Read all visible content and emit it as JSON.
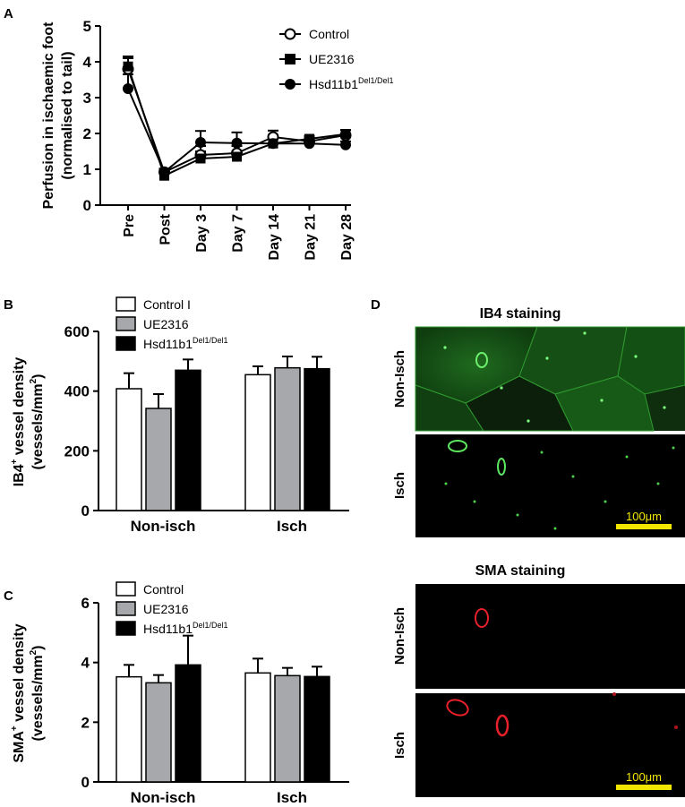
{
  "panels": {
    "A": "A",
    "B": "B",
    "C": "C",
    "D": "D"
  },
  "colors": {
    "control": "#ffffff",
    "ue2316": "#a6a8ab",
    "hsd": "#000000",
    "ib4_green": "#3ec43e",
    "sma_red": "#e8202a",
    "scale_bar": "#f2e600"
  },
  "chart_data": [
    {
      "id": "A",
      "type": "line",
      "ylabel_line1": "Perfusion in ischaemic foot",
      "ylabel_line2": "(normalised to tail)",
      "ylim": [
        0,
        5
      ],
      "yticks": [
        "0",
        "1",
        "2",
        "3",
        "4",
        "5"
      ],
      "categories": [
        "Pre",
        "Post",
        "Day 3",
        "Day 7",
        "Day 14",
        "Day 21",
        "Day 28"
      ],
      "legend": {
        "control": "Control",
        "ue2316": "UE2316",
        "hsd_base": "Hsd11b1",
        "hsd_sup": "Del1/Del1"
      },
      "series": [
        {
          "key": "control",
          "marker": "open-circle",
          "values": [
            3.8,
            0.92,
            1.4,
            1.45,
            1.9,
            1.78,
            1.95
          ],
          "err": [
            0.3,
            0.08,
            0.25,
            0.2,
            0.18,
            0.1,
            0.15
          ]
        },
        {
          "key": "ue2316",
          "marker": "square",
          "values": [
            3.87,
            0.82,
            1.3,
            1.35,
            1.72,
            1.85,
            1.98
          ],
          "err": [
            0.28,
            0.08,
            0.2,
            0.15,
            0.15,
            0.08,
            0.12
          ]
        },
        {
          "key": "hsd",
          "marker": "circle",
          "values": [
            3.25,
            0.92,
            1.75,
            1.73,
            1.72,
            1.72,
            1.68
          ],
          "err": [
            0.4,
            0.1,
            0.32,
            0.3,
            0.12,
            0.15,
            0.1
          ]
        }
      ]
    },
    {
      "id": "B",
      "type": "bar",
      "ylabel_base": "IB4",
      "ylabel_sup": "+",
      "ylabel_rest": " vessel density",
      "ylabel_line2_base": "(vessels/mm",
      "ylabel_line2_sup": "2",
      "ylabel_line2_end": ")",
      "ylim": [
        0,
        600
      ],
      "yticks": [
        "0",
        "200",
        "400",
        "600"
      ],
      "categories": [
        "Non-isch",
        "Isch"
      ],
      "legend": {
        "control": "Control I",
        "ue2316": "UE2316",
        "hsd_base": "Hsd11b1",
        "hsd_sup": "Del1/Del1"
      },
      "series": [
        {
          "key": "control",
          "values": [
            408,
            455
          ],
          "err": [
            52,
            28
          ]
        },
        {
          "key": "ue2316",
          "values": [
            342,
            478
          ],
          "err": [
            48,
            38
          ]
        },
        {
          "key": "hsd",
          "values": [
            470,
            475
          ],
          "err": [
            36,
            40
          ]
        }
      ]
    },
    {
      "id": "C",
      "type": "bar",
      "ylabel_base": "SMA",
      "ylabel_sup": "+",
      "ylabel_rest": " vessel density",
      "ylabel_line2_base": "(vessels/mm",
      "ylabel_line2_sup": "2",
      "ylabel_line2_end": ")",
      "ylim": [
        0,
        6
      ],
      "yticks": [
        "0",
        "2",
        "4",
        "6"
      ],
      "categories": [
        "Non-isch",
        "Isch"
      ],
      "legend": {
        "control": "Control",
        "ue2316": "UE2316",
        "hsd_base": "Hsd11b1",
        "hsd_sup": "Del1/Del1"
      },
      "series": [
        {
          "key": "control",
          "values": [
            3.52,
            3.65
          ],
          "err": [
            0.4,
            0.48
          ]
        },
        {
          "key": "ue2316",
          "values": [
            3.32,
            3.56
          ],
          "err": [
            0.26,
            0.26
          ]
        },
        {
          "key": "hsd",
          "values": [
            3.92,
            3.53
          ],
          "err": [
            0.98,
            0.33
          ]
        }
      ]
    }
  ],
  "micrographs": {
    "ib4_title": "IB4 staining",
    "sma_title": "SMA staining",
    "row_non_isch": "Non-Isch",
    "row_isch": "Isch",
    "scale_label": "100μm"
  }
}
